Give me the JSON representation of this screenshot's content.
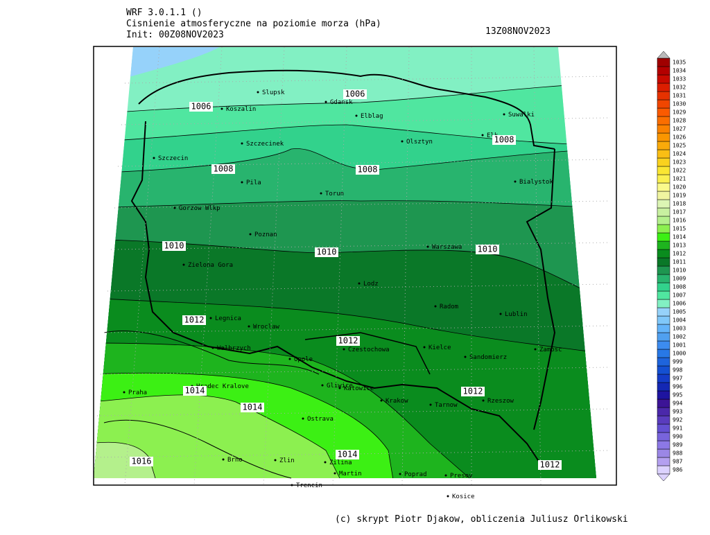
{
  "header": {
    "model": "WRF 3.0.1.1 ()",
    "variable": "Cisnienie atmosferyczne na poziomie morza (hPa)",
    "init": "Init: 00Z08NOV2023",
    "valid": "13Z08NOV2023"
  },
  "isobar_labels": [
    "1006",
    "1006",
    "1008",
    "1008",
    "1008",
    "1010",
    "1010",
    "1010",
    "1012",
    "1012",
    "1012",
    "1012",
    "1014",
    "1014",
    "1014",
    "1016"
  ],
  "cities": [
    "Slupsk",
    "Gdansk",
    "Koszalin",
    "Elblag",
    "Suwalki",
    "Szczecinek",
    "Olsztyn",
    "Elk",
    "Szczecin",
    "Pila",
    "Torun",
    "Bialystok",
    "Gorzow Wlkp",
    "Poznan",
    "Warszawa",
    "Zielona Gora",
    "Lodz",
    "Radom",
    "Lublin",
    "Legnica",
    "Wroclaw",
    "Kielce",
    "Walbrzych",
    "Czestochowa",
    "Zamosc",
    "Opole",
    "Sandomierz",
    "Gliwice",
    "Katowice",
    "Hradec Kralove",
    "Praha",
    "Krakow",
    "Tarnow",
    "Rzeszow",
    "Ostrava",
    "Brno",
    "Zlin",
    "Zilina",
    "Martin",
    "Poprad",
    "Presov",
    "Trencin",
    "Kosice"
  ],
  "colorbar": {
    "levels": [
      986,
      987,
      988,
      989,
      990,
      991,
      992,
      993,
      994,
      995,
      996,
      997,
      998,
      999,
      1000,
      1001,
      1002,
      1003,
      1004,
      1005,
      1006,
      1007,
      1008,
      1009,
      1010,
      1011,
      1012,
      1013,
      1014,
      1015,
      1016,
      1017,
      1018,
      1019,
      1020,
      1021,
      1022,
      1023,
      1024,
      1025,
      1026,
      1027,
      1028,
      1029,
      1030,
      1031,
      1032,
      1033,
      1034,
      1035
    ],
    "colors": [
      "#dcd2ff",
      "#b4a0f0",
      "#9b87e6",
      "#8c78e6",
      "#7864dc",
      "#6450d2",
      "#5a3cbe",
      "#4b28aa",
      "#3c1496",
      "#1e14a0",
      "#1428b4",
      "#143cc8",
      "#1450d2",
      "#1e64dc",
      "#2878e6",
      "#3c8cf0",
      "#50a0f0",
      "#64b4fa",
      "#80c8fa",
      "#96d2fa",
      "#82f0c3",
      "#50e6a0",
      "#32d28c",
      "#28b46e",
      "#1e9650",
      "#0a7828",
      "#0a8c1e",
      "#1eb41e",
      "#3cf014",
      "#8cf050",
      "#b4f08c",
      "#c8f0a0",
      "#dcf5b4",
      "#f0f5a0",
      "#fafa8c",
      "#faf050",
      "#fae632",
      "#fad21e",
      "#fabe14",
      "#faaa0a",
      "#fa9600",
      "#fa8200",
      "#fa6e00",
      "#fa5a00",
      "#f04600",
      "#e63200",
      "#dc1e00",
      "#c80a00",
      "#b40000",
      "#a00000"
    ]
  },
  "footer": "(c) skrypt Piotr Djakow, obliczenia Juliusz Orlikowski"
}
